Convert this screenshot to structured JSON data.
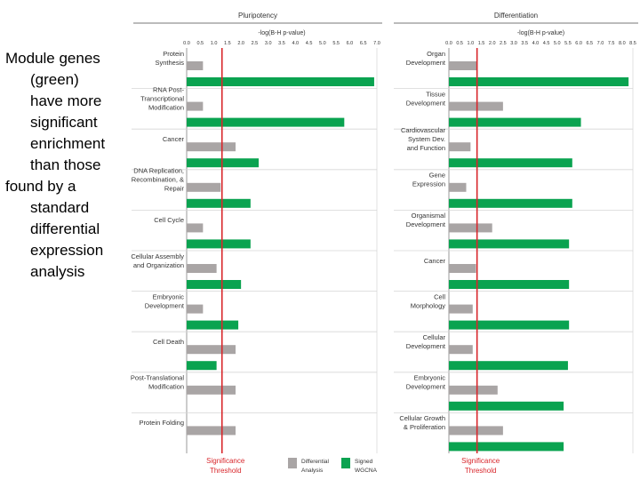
{
  "caption": {
    "lines": [
      "Module genes",
      "(green)",
      "have more",
      "significant",
      "enrichment",
      "than those",
      "found by a",
      "standard",
      "differential",
      "expression",
      "analysis"
    ]
  },
  "chart_data": [
    {
      "type": "bar",
      "title": "Pluripotency",
      "xlabel": "-log(B-H p-value)",
      "xlim": [
        0,
        7.0
      ],
      "ticks": [
        "0.0",
        "0.5",
        "1.0",
        "1.5",
        "2.0",
        "2.5",
        "3.0",
        "3.5",
        "4.0",
        "4.5",
        "5.0",
        "5.5",
        "6.0",
        "6.5",
        "7.0"
      ],
      "threshold": 1.3,
      "threshold_label": [
        "Significance",
        "Threshold"
      ],
      "categories": [
        [
          "Protein",
          "Synthesis"
        ],
        [
          "RNA Post-",
          "Transcriptional",
          "Modification"
        ],
        [
          "Cancer"
        ],
        [
          "DNA Replication,",
          "Recombination, &",
          "Repair"
        ],
        [
          "Cell Cycle"
        ],
        [
          "Cellular Assembly",
          "and Organization"
        ],
        [
          "Embryonic",
          "Development"
        ],
        [
          "Cell Death"
        ],
        [
          "Post-Translational",
          "Modification"
        ],
        [
          "Protein Folding"
        ]
      ],
      "series": [
        {
          "name": "Differential Analysis",
          "color": "#a9a5a5",
          "values": [
            0.6,
            0.6,
            1.8,
            1.25,
            0.6,
            1.1,
            0.6,
            1.8,
            1.8,
            1.8
          ]
        },
        {
          "name": "Signed WGCNA",
          "color": "#0aa350",
          "values": [
            6.9,
            5.8,
            2.65,
            2.35,
            2.35,
            2.0,
            1.9,
            1.1,
            null,
            null
          ]
        }
      ],
      "legend": [
        {
          "label": [
            "Differential",
            "Analysis"
          ],
          "color": "#a9a5a5"
        },
        {
          "label": [
            "Signed",
            "WGCNA"
          ],
          "color": "#0aa350"
        }
      ]
    },
    {
      "type": "bar",
      "title": "Differentiation",
      "xlabel": "-log(B-H p-value)",
      "xlim": [
        0,
        8.5
      ],
      "ticks": [
        "0.0",
        "0.5",
        "1.0",
        "1.5",
        "2.0",
        "2.5",
        "3.0",
        "3.5",
        "4.0",
        "4.5",
        "5.0",
        "5.5",
        "6.0",
        "6.5",
        "7.0",
        "7.5",
        "8.0",
        "8.5"
      ],
      "threshold": 1.3,
      "threshold_label": [
        "Significance",
        "Threshold"
      ],
      "categories": [
        [
          "Organ",
          "Development"
        ],
        [
          "Tissue",
          "Development"
        ],
        [
          "Cardiovascular",
          "System Dev.",
          "and Function"
        ],
        [
          "Gene",
          "Expression"
        ],
        [
          "Organismal",
          "Development"
        ],
        [
          "Cancer"
        ],
        [
          "Cell",
          "Morphology"
        ],
        [
          "Cellular",
          "Development"
        ],
        [
          "Embryonic",
          "Development"
        ],
        [
          "Cellular Growth",
          "& Proliferation"
        ]
      ],
      "series": [
        {
          "name": "Differential Analysis",
          "color": "#a9a5a5",
          "values": [
            1.3,
            2.5,
            1.0,
            0.8,
            2.0,
            1.25,
            1.1,
            1.1,
            2.25,
            2.5
          ]
        },
        {
          "name": "Signed WGCNA",
          "color": "#0aa350",
          "values": [
            8.3,
            6.1,
            5.7,
            5.7,
            5.55,
            5.55,
            5.55,
            5.5,
            5.3,
            5.3
          ]
        }
      ]
    }
  ]
}
